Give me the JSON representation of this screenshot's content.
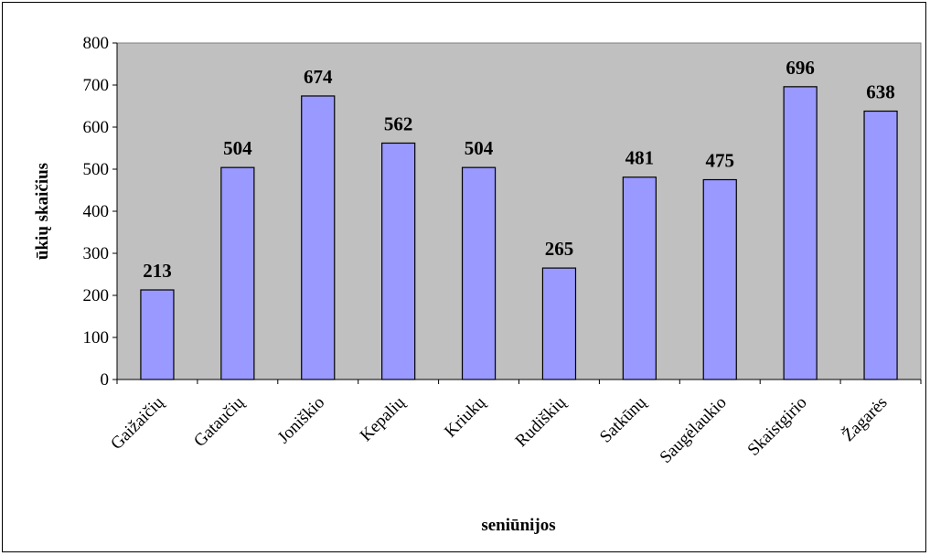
{
  "chart_data": {
    "type": "bar",
    "title": "",
    "xlabel": "seniūnijos",
    "ylabel": "ūkių skaičius",
    "categories": [
      "Gaižaičių",
      "Gataučių",
      "Joniškio",
      "Kepalių",
      "Kriukų",
      "Rudiškių",
      "Satkūnų",
      "Saugėlaukio",
      "Skaistgirio",
      "Žagarės"
    ],
    "values": [
      213,
      504,
      674,
      562,
      504,
      265,
      481,
      475,
      696,
      638
    ],
    "data_labels": [
      "213",
      "504",
      "674",
      "562",
      "504",
      "265",
      "481",
      "475",
      "696",
      "638"
    ],
    "ylim": [
      0,
      800
    ],
    "yticks": [
      0,
      100,
      200,
      300,
      400,
      500,
      600,
      700,
      800
    ],
    "grid": false,
    "legend": "none",
    "colors": {
      "bar_fill": "#9999ff",
      "plot_background": "#c0c0c0",
      "border": "#000000"
    }
  }
}
